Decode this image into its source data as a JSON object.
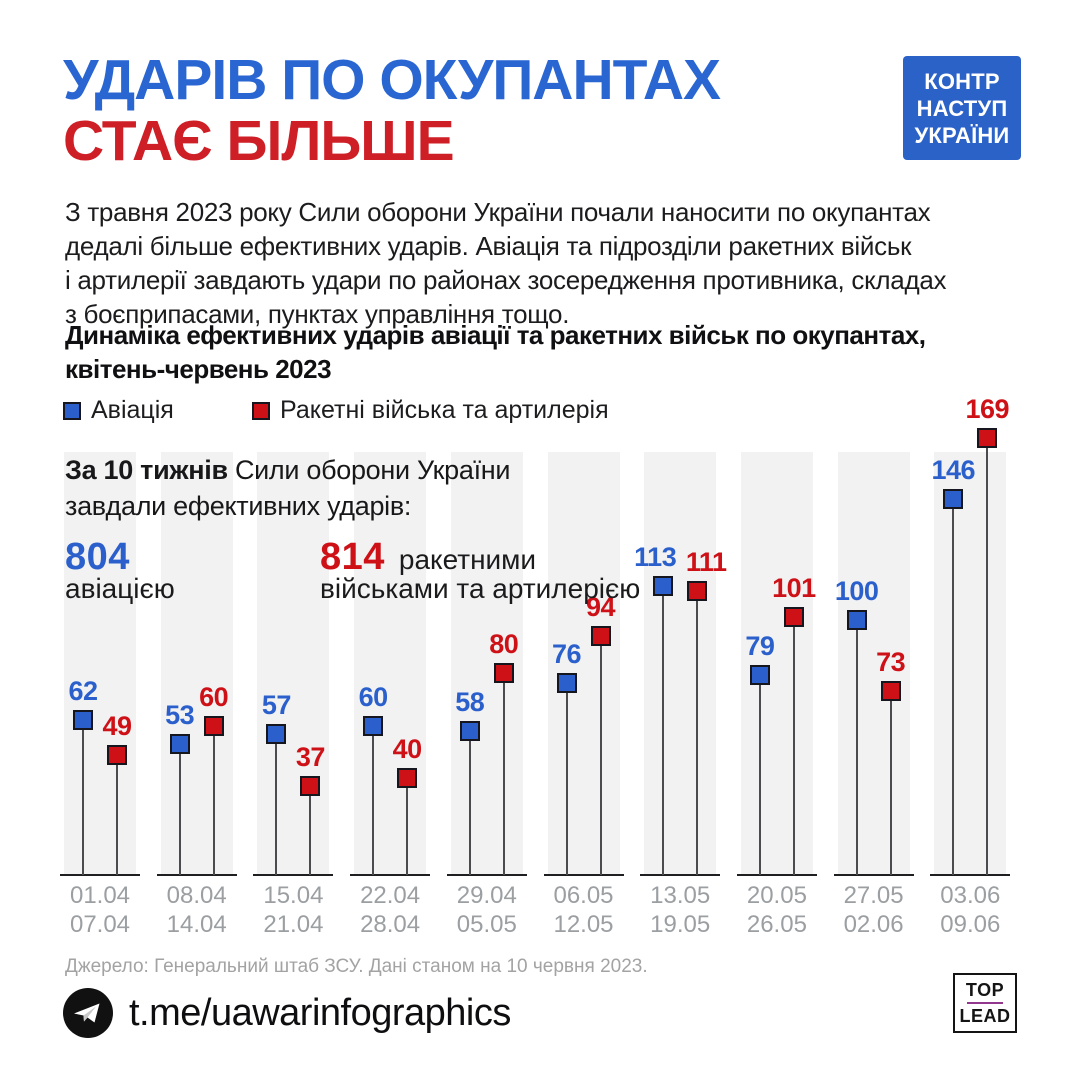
{
  "colors": {
    "title_blue": "#2A66D2",
    "title_red": "#CE1E26",
    "blue": "#2B60CC",
    "red": "#CE1117",
    "badge_blue": "#2B62C8",
    "band": "#F2F2F2",
    "stem": "#4A4A4F",
    "marker_border": "#16161E",
    "logo_line": "#93388F"
  },
  "header": {
    "title_line1": "УДАРІВ ПО ОКУПАНТАХ",
    "title_line2": "СТАЄ БІЛЬШЕ",
    "badge_lines": [
      "КОНТР",
      "НАСТУП",
      "УКРАЇНИ"
    ]
  },
  "intro": "З травня 2023 року Сили оборони України почали наносити по окупантах\nдедалі більше ефективних ударів. Авіація та підрозділи ракетних військ\nі артилерії завдають удари по районах зосередження противника, складах\nз боєприпасами, пунктах управління тощо.",
  "subtitle": "Динаміка ефективних ударів авіації та ракетних військ по окупантах,\nквітень-червень 2023",
  "summary": {
    "lead_bold": "За 10 тижнів",
    "lead_rest": " Сили оборони України",
    "lead_line2": "завдали ефективних ударів:",
    "aviation_total": "804",
    "aviation_label": "авіацією",
    "artillery_total": "814",
    "artillery_label_line1": "ракетними",
    "artillery_label_line2": "військами та артилерією"
  },
  "chart_data": {
    "type": "lollipop",
    "title": "Динаміка ефективних ударів авіації та ракетних військ по окупантах, квітень-червень 2023",
    "legend_position": "top",
    "grid": false,
    "weeks": [
      {
        "from": "01.04",
        "to": "07.04"
      },
      {
        "from": "08.04",
        "to": "14.04"
      },
      {
        "from": "15.04",
        "to": "21.04"
      },
      {
        "from": "22.04",
        "to": "28.04"
      },
      {
        "from": "29.04",
        "to": "05.05"
      },
      {
        "from": "06.05",
        "to": "12.05"
      },
      {
        "from": "13.05",
        "to": "19.05"
      },
      {
        "from": "20.05",
        "to": "26.05"
      },
      {
        "from": "27.05",
        "to": "02.06"
      },
      {
        "from": "03.06",
        "to": "09.06"
      }
    ],
    "series": [
      {
        "name": "Авіація",
        "color": "#2B60CC",
        "values": [
          62,
          53,
          57,
          60,
          58,
          76,
          113,
          79,
          100,
          146
        ],
        "label_dx": [
          0,
          0,
          0,
          0,
          0,
          0,
          -8,
          0,
          0,
          0
        ]
      },
      {
        "name": "Ракетні війська та артилерія",
        "color": "#CE1117",
        "values": [
          49,
          60,
          37,
          40,
          80,
          94,
          111,
          101,
          73,
          169
        ],
        "label_dx": [
          0,
          0,
          0,
          0,
          0,
          0,
          9,
          0,
          0,
          0
        ]
      }
    ],
    "totals": {
      "aviation": 804,
      "artillery": 814
    }
  },
  "footer": {
    "source": "Джерело: Генеральний штаб ЗСУ. Дані станом на 10 червня 2023.",
    "telegram_handle": "t.me/uawarinfographics",
    "logo_top": "TOP",
    "logo_bottom": "LEAD"
  }
}
